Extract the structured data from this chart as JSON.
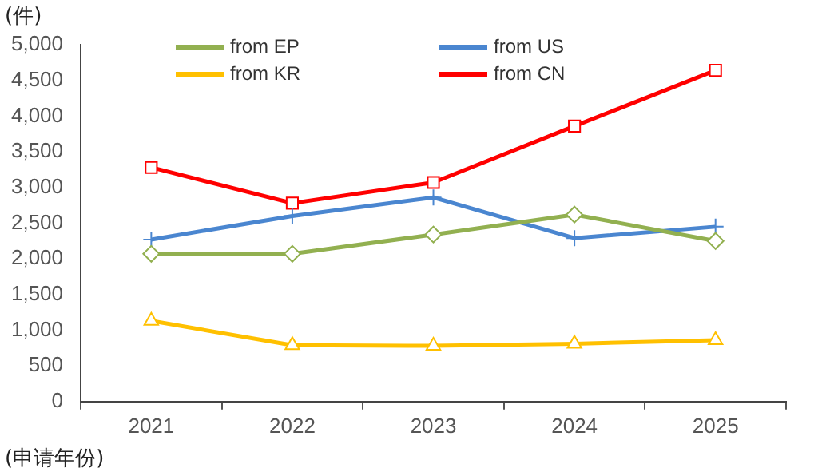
{
  "chart_data": {
    "type": "line",
    "annotations": [
      "(件)"
    ],
    "xlabel": "(申请年份)",
    "categories": [
      "2021",
      "2022",
      "2023",
      "2024",
      "2025"
    ],
    "series": [
      {
        "name": "from EP",
        "color": "#92b050",
        "marker": "diamond",
        "values": [
          2070,
          2070,
          2340,
          2620,
          2250
        ]
      },
      {
        "name": "from US",
        "color": "#4a86d0",
        "marker": "cross",
        "values": [
          2270,
          2600,
          2860,
          2290,
          2450
        ]
      },
      {
        "name": "from KR",
        "color": "#ffc000",
        "marker": "triangle",
        "values": [
          1130,
          790,
          780,
          810,
          860
        ]
      },
      {
        "name": "from CN",
        "color": "#ff0000",
        "marker": "square",
        "values": [
          3280,
          2780,
          3070,
          3860,
          4640
        ]
      }
    ],
    "ylim": [
      0,
      5000
    ],
    "yticks": [
      0,
      500,
      {
        "value": 1000,
        "label": "1,000"
      },
      {
        "value": 1500,
        "label": "1,500"
      },
      {
        "value": 2000,
        "label": "2,000"
      },
      {
        "value": 2500,
        "label": "2,500"
      },
      {
        "value": 3000,
        "label": "3,000"
      },
      {
        "value": 3500,
        "label": "3,500"
      },
      {
        "value": 4000,
        "label": "4,000"
      },
      {
        "value": 4500,
        "label": "4,500"
      },
      {
        "value": 5000,
        "label": "5,000"
      }
    ],
    "grid": false,
    "legend": "top"
  }
}
